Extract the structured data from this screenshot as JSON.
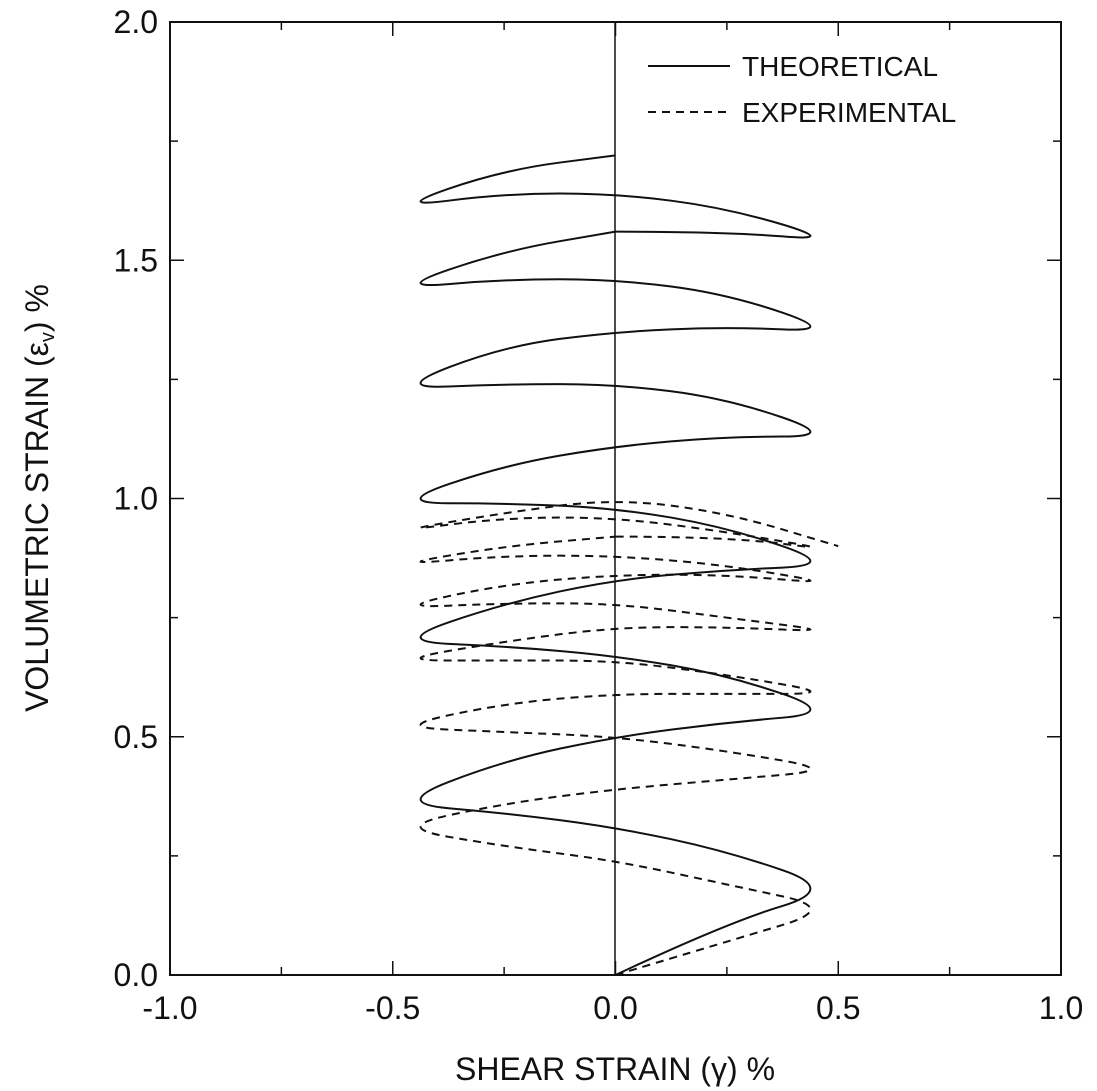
{
  "chart_data": {
    "type": "line",
    "title": "",
    "xlabel": "SHEAR STRAIN (γ) %",
    "ylabel_main": "VOLUMETRIC STRAIN (ε",
    "ylabel_sub": "v",
    "ylabel_tail": ") %",
    "xlim": [
      -1.0,
      1.0
    ],
    "ylim": [
      0.0,
      2.0
    ],
    "x_ticks": [
      "-1.0",
      "-0.5",
      "0.0",
      "0.5",
      "1.0"
    ],
    "x_tick_values": [
      -1.0,
      -0.5,
      0.0,
      0.5,
      1.0
    ],
    "y_ticks": [
      "0.0",
      "0.5",
      "1.0",
      "1.5",
      "2.0"
    ],
    "y_tick_values": [
      0.0,
      0.5,
      1.0,
      1.5,
      2.0
    ],
    "legend_position": "top-right",
    "colors": {
      "line": "#111111"
    },
    "series": [
      {
        "name": "THEORETICAL",
        "style": "solid",
        "x": [
          0.0,
          0.25,
          0.5,
          0.25,
          0.0,
          -0.25,
          -0.5,
          -0.25,
          0.0,
          0.25,
          0.5,
          0.25,
          0.0,
          -0.25,
          -0.5,
          -0.25,
          0.0,
          0.25,
          0.5,
          0.25,
          0.0,
          -0.25,
          -0.5,
          -0.25,
          0.0,
          0.25,
          0.5,
          0.25,
          0.0,
          -0.25,
          -0.5,
          -0.25,
          0.0,
          0.25,
          0.5,
          0.25,
          0.0,
          -0.25,
          -0.5,
          -0.25,
          0.0
        ],
        "y": [
          0.0,
          0.11,
          0.18,
          0.26,
          0.31,
          0.34,
          0.36,
          0.45,
          0.5,
          0.53,
          0.55,
          0.63,
          0.67,
          0.69,
          0.7,
          0.78,
          0.83,
          0.85,
          0.86,
          0.94,
          0.98,
          0.99,
          0.99,
          1.07,
          1.11,
          1.13,
          1.13,
          1.21,
          1.24,
          1.24,
          1.23,
          1.32,
          1.35,
          1.36,
          1.35,
          1.43,
          1.46,
          1.46,
          1.44,
          1.52,
          1.56
        ]
      },
      {
        "name": "THEORETICAL",
        "style": "solid",
        "x": [
          0.0,
          0.25,
          0.5,
          0.25,
          0.0,
          -0.25,
          -0.5,
          -0.25,
          0.0
        ],
        "y": [
          1.56,
          1.56,
          1.54,
          1.61,
          1.64,
          1.64,
          1.61,
          1.69,
          1.72
        ]
      },
      {
        "name": "EXPERIMENTAL",
        "style": "dashed",
        "x": [
          0.0,
          0.25,
          0.5,
          0.25,
          0.0,
          -0.25,
          -0.5,
          -0.25,
          0.0,
          0.25,
          0.5,
          0.25,
          0.0,
          -0.25,
          -0.5,
          -0.25,
          0.0,
          0.25,
          0.5,
          0.25,
          0.0,
          -0.25,
          -0.5,
          -0.25,
          0.0,
          0.25,
          0.5,
          0.25,
          0.0,
          -0.25,
          -0.5,
          -0.25,
          0.0,
          0.25,
          0.5,
          0.25,
          0.0,
          -0.25,
          -0.5,
          -0.25,
          0.0
        ],
        "y": [
          0.0,
          0.07,
          0.14,
          0.19,
          0.24,
          0.27,
          0.31,
          0.36,
          0.39,
          0.41,
          0.43,
          0.47,
          0.5,
          0.51,
          0.52,
          0.57,
          0.59,
          0.59,
          0.59,
          0.63,
          0.66,
          0.66,
          0.66,
          0.7,
          0.73,
          0.73,
          0.72,
          0.75,
          0.78,
          0.78,
          0.77,
          0.82,
          0.84,
          0.84,
          0.82,
          0.86,
          0.88,
          0.88,
          0.86,
          0.9,
          0.92
        ]
      },
      {
        "name": "EXPERIMENTAL",
        "style": "dashed",
        "x": [
          0.0,
          0.25,
          0.5,
          0.25,
          0.0,
          -0.25,
          -0.5,
          -0.25,
          0.0,
          0.25,
          0.5
        ],
        "y": [
          0.92,
          0.92,
          0.89,
          0.93,
          0.96,
          0.96,
          0.93,
          0.97,
          1.0,
          0.97,
          0.9
        ]
      }
    ]
  }
}
